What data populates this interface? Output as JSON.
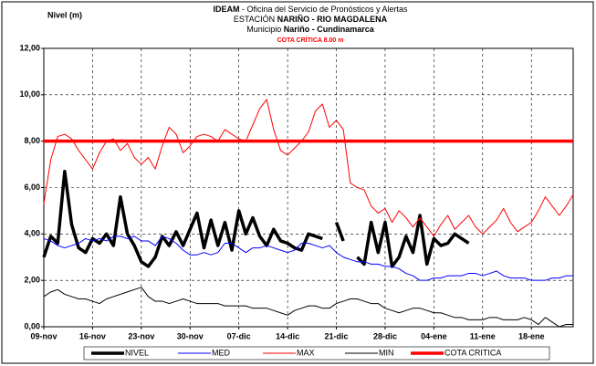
{
  "chart_data": {
    "type": "line",
    "title_lines": [
      [
        "IDEAM",
        " - Oficina del Servicio de Pronósticos y Alertas"
      ],
      [
        "ESTACIÓN ",
        "NARIÑO  - RIO MAGDALENA"
      ],
      [
        "Municipio ",
        "Nariño - Cundinamarca"
      ]
    ],
    "annotation": "COTA CRÍTICA 8.00 m",
    "ylabel": "Nivel (m)",
    "categories": [
      "09-nov",
      null,
      null,
      null,
      null,
      null,
      null,
      "16-nov",
      null,
      null,
      null,
      null,
      null,
      null,
      "23-nov",
      null,
      null,
      null,
      null,
      null,
      null,
      "30-nov",
      null,
      null,
      null,
      null,
      null,
      null,
      "07-dic",
      null,
      null,
      null,
      null,
      null,
      null,
      "14-dic",
      null,
      null,
      null,
      null,
      null,
      null,
      "21-dic",
      null,
      null,
      null,
      null,
      null,
      null,
      "28-dic",
      null,
      null,
      null,
      null,
      null,
      null,
      "04-ene",
      null,
      null,
      null,
      null,
      null,
      null,
      "11-ene",
      null,
      null,
      null,
      null,
      null,
      null,
      "18-ene",
      null,
      null,
      null,
      null,
      null,
      null
    ],
    "series": [
      {
        "name": "NIVEL",
        "color": "#000000",
        "width": 3.5,
        "values": [
          3.0,
          3.9,
          3.6,
          6.7,
          4.4,
          3.4,
          3.2,
          3.8,
          3.6,
          4.0,
          3.5,
          5.6,
          4.0,
          3.5,
          2.8,
          2.6,
          3.0,
          3.9,
          3.5,
          4.1,
          3.5,
          4.2,
          4.9,
          3.4,
          4.6,
          3.5,
          4.5,
          3.3,
          5.0,
          4.0,
          4.7,
          3.9,
          3.5,
          4.2,
          3.7,
          3.6,
          3.4,
          3.3,
          4.0,
          3.9,
          3.8,
          null,
          4.5,
          3.7,
          null,
          3.0,
          2.7,
          4.5,
          3.2,
          4.5,
          2.6,
          3.0,
          3.9,
          3.2,
          4.8,
          2.7,
          3.8,
          3.5,
          3.6,
          4.0,
          3.8,
          3.6,
          null,
          null,
          null,
          null,
          null,
          null,
          null,
          null,
          null,
          null,
          null,
          null,
          null,
          null,
          null
        ]
      },
      {
        "name": "MED",
        "color": "#0000ff",
        "width": 1,
        "values": [
          3.8,
          3.7,
          3.5,
          3.4,
          3.5,
          3.6,
          3.8,
          3.7,
          3.8,
          3.7,
          3.9,
          3.9,
          3.8,
          3.9,
          3.7,
          3.7,
          3.5,
          3.9,
          3.8,
          3.6,
          3.3,
          3.1,
          3.1,
          3.2,
          3.1,
          3.2,
          3.6,
          3.6,
          3.4,
          3.2,
          3.4,
          3.4,
          3.5,
          3.4,
          3.3,
          3.2,
          3.3,
          3.6,
          3.6,
          3.5,
          3.4,
          3.5,
          3.2,
          3.0,
          2.9,
          2.8,
          2.8,
          2.7,
          2.7,
          2.6,
          2.6,
          2.5,
          2.3,
          2.2,
          2.0,
          2.0,
          2.1,
          2.1,
          2.2,
          2.2,
          2.2,
          2.3,
          2.3,
          2.2,
          2.3,
          2.4,
          2.2,
          2.1,
          2.1,
          2.1,
          2.0,
          2.0,
          2.0,
          2.1,
          2.1,
          2.2,
          2.2
        ]
      },
      {
        "name": "MAX",
        "color": "#ff0000",
        "width": 1,
        "values": [
          5.3,
          7.2,
          8.2,
          8.3,
          8.1,
          7.6,
          7.2,
          6.8,
          7.5,
          8.0,
          8.1,
          7.6,
          7.9,
          7.3,
          7.0,
          7.3,
          6.8,
          7.8,
          8.6,
          8.3,
          7.5,
          7.8,
          8.2,
          8.3,
          8.2,
          8.0,
          8.5,
          8.3,
          8.1,
          8.0,
          8.7,
          9.4,
          9.8,
          8.5,
          7.6,
          7.4,
          7.7,
          8.0,
          8.4,
          9.3,
          9.6,
          8.6,
          8.9,
          8.5,
          6.2,
          6.0,
          5.9,
          5.2,
          4.9,
          5.1,
          4.5,
          5.0,
          4.7,
          4.3,
          4.7,
          4.3,
          3.9,
          4.4,
          4.8,
          4.2,
          4.5,
          4.8,
          4.3,
          4.0,
          4.3,
          4.6,
          5.1,
          4.5,
          4.1,
          4.3,
          4.5,
          5.0,
          5.6,
          5.2,
          4.8,
          5.2,
          5.7
        ]
      },
      {
        "name": "MIN",
        "color": "#000000",
        "width": 1,
        "values": [
          1.3,
          1.5,
          1.6,
          1.4,
          1.3,
          1.2,
          1.2,
          1.1,
          1.0,
          1.2,
          1.3,
          1.4,
          1.5,
          1.6,
          1.7,
          1.3,
          1.1,
          1.1,
          1.0,
          1.1,
          1.2,
          1.1,
          1.0,
          1.0,
          1.0,
          1.0,
          0.9,
          0.9,
          0.9,
          0.9,
          0.8,
          0.8,
          0.8,
          0.7,
          0.6,
          0.5,
          0.7,
          0.8,
          0.9,
          0.9,
          0.8,
          0.8,
          1.0,
          1.1,
          1.2,
          1.2,
          1.1,
          1.0,
          1.0,
          0.8,
          0.7,
          0.6,
          0.7,
          0.8,
          0.8,
          0.7,
          0.6,
          0.6,
          0.5,
          0.4,
          0.4,
          0.3,
          0.3,
          0.3,
          0.4,
          0.4,
          0.3,
          0.3,
          0.3,
          0.4,
          0.3,
          0.1,
          0.4,
          0.2,
          0.0,
          0.1,
          0.1
        ]
      }
    ],
    "threshold": {
      "name": "COTA CRITICA",
      "value": 8,
      "color": "#ff0000",
      "width": 3.5
    },
    "ylim": [
      0,
      12
    ],
    "yticks": [
      {
        "value": 0,
        "label": "0,00"
      },
      {
        "value": 2,
        "label": "2,00"
      },
      {
        "value": 4,
        "label": "4,00"
      },
      {
        "value": 6,
        "label": "6,00"
      },
      {
        "value": 8,
        "label": "8,00"
      },
      {
        "value": 10,
        "label": "10,00"
      },
      {
        "value": 12,
        "label": "12,00"
      }
    ],
    "grid": true
  }
}
